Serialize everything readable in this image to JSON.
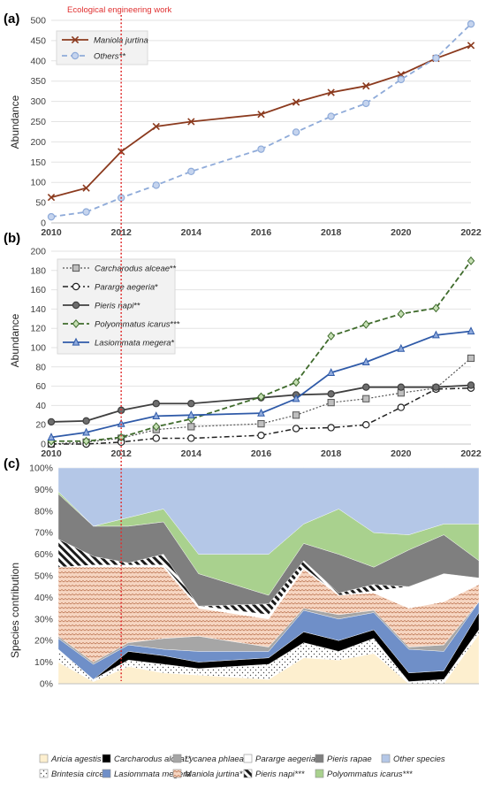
{
  "annotation": "Ecological engineering work",
  "chart_data": [
    {
      "panel": "(a)",
      "type": "line",
      "ylabel": "Abundance",
      "ylim": [
        0,
        500
      ],
      "yticks": [
        "0",
        "50",
        "100",
        "150",
        "200",
        "250",
        "300",
        "350",
        "400",
        "450",
        "500"
      ],
      "xlim": [
        2010,
        2022
      ],
      "xticks": [
        "2010",
        "2012",
        "2014",
        "2016",
        "2018",
        "2020",
        "2022"
      ],
      "grid": true,
      "legend": "top-left",
      "series": [
        {
          "name": "Maniola jurtina",
          "color": "#8b3a1e",
          "marker": "x",
          "x": [
            2010,
            2011,
            2012,
            2013,
            2014,
            2016,
            2017,
            2018,
            2019,
            2020,
            2021,
            2022
          ],
          "y": [
            63,
            86,
            176,
            238,
            250,
            268,
            298,
            322,
            338,
            366,
            406,
            438
          ]
        },
        {
          "name": "Others**",
          "color": "#8fabd9",
          "marker": "circle",
          "x": [
            2010,
            2011,
            2012,
            2013,
            2014,
            2016,
            2017,
            2018,
            2019,
            2020,
            2021,
            2022
          ],
          "y": [
            15,
            27,
            62,
            93,
            127,
            182,
            224,
            263,
            295,
            354,
            407,
            491
          ]
        }
      ]
    },
    {
      "panel": "(b)",
      "type": "line",
      "ylabel": "Abundance",
      "ylim": [
        0,
        200
      ],
      "yticks": [
        "0",
        "20",
        "40",
        "60",
        "80",
        "100",
        "120",
        "140",
        "160",
        "180",
        "200"
      ],
      "xlim": [
        2010,
        2022
      ],
      "xticks": [
        "2010",
        "2012",
        "2014",
        "2016",
        "2018",
        "2020",
        "2022"
      ],
      "grid": true,
      "legend": "top-left",
      "series": [
        {
          "name": "Carcharodus alceae",
          "stars": "**",
          "color": "#555555",
          "marker": "square",
          "x": [
            2010,
            2011,
            2012,
            2013,
            2014,
            2016,
            2017,
            2018,
            2019,
            2020,
            2021,
            2022
          ],
          "y": [
            0,
            2,
            6,
            15,
            18,
            21,
            30,
            43,
            47,
            53,
            58,
            89
          ]
        },
        {
          "name": "Pararge aegeria",
          "stars": "*",
          "color": "#222222",
          "marker": "circle-open",
          "x": [
            2010,
            2011,
            2012,
            2013,
            2014,
            2016,
            2017,
            2018,
            2019,
            2020,
            2021,
            2022
          ],
          "y": [
            0,
            0,
            2,
            6,
            6,
            9,
            16,
            17,
            20,
            38,
            57,
            58
          ]
        },
        {
          "name": "Pieris napi",
          "stars": "**",
          "color": "#404040",
          "marker": "circle",
          "x": [
            2010,
            2011,
            2012,
            2013,
            2014,
            2016,
            2017,
            2018,
            2019,
            2020,
            2021,
            2022
          ],
          "y": [
            23,
            24,
            35,
            42,
            42,
            48,
            51,
            52,
            59,
            59,
            59,
            61
          ]
        },
        {
          "name": "Polyommatus icarus",
          "stars": "***",
          "color": "#3f6b2c",
          "marker": "diamond",
          "x": [
            2010,
            2011,
            2012,
            2013,
            2014,
            2016,
            2017,
            2018,
            2019,
            2020,
            2021,
            2022
          ],
          "y": [
            3,
            3,
            7,
            18,
            26,
            49,
            64,
            112,
            124,
            135,
            141,
            190
          ]
        },
        {
          "name": "Lasiommata megera",
          "stars": "*",
          "color": "#2f5aa8",
          "marker": "triangle",
          "x": [
            2010,
            2011,
            2012,
            2013,
            2014,
            2016,
            2017,
            2018,
            2019,
            2020,
            2021,
            2022
          ],
          "y": [
            7,
            12,
            21,
            29,
            30,
            32,
            47,
            74,
            85,
            99,
            113,
            117
          ]
        }
      ]
    },
    {
      "panel": "(c)",
      "type": "area",
      "stacked": true,
      "ylabel": "Species contribution",
      "ylim": [
        0,
        100
      ],
      "yticks": [
        "0%",
        "10%",
        "20%",
        "30%",
        "40%",
        "50%",
        "60%",
        "70%",
        "80%",
        "90%",
        "100%"
      ],
      "x": [
        2010,
        2011,
        2012,
        2013,
        2014,
        2016,
        2017,
        2018,
        2019,
        2020,
        2021,
        2022
      ],
      "xticks": [],
      "legend": "bottom",
      "series": [
        {
          "name": "Aricia agestis",
          "fill": "#fdefcf",
          "values": [
            10,
            1,
            8,
            5,
            4,
            2,
            12,
            11,
            14,
            0,
            0,
            23
          ]
        },
        {
          "name": "Brintesia circe",
          "fill": "#e8e8e8",
          "values": [
            6,
            1,
            3,
            4,
            3,
            7,
            7,
            4,
            7,
            1,
            2,
            2
          ]
        },
        {
          "name": "Carcharodus alcea**",
          "fill": "#000000",
          "values": [
            0,
            0,
            4,
            4,
            3,
            3,
            5,
            5,
            4,
            4,
            4,
            8
          ]
        },
        {
          "name": "Lasiommata megera",
          "fill": "#6f8fc8",
          "values": [
            5,
            7,
            3,
            3,
            5,
            3,
            10,
            10,
            8,
            11,
            9,
            5
          ]
        },
        {
          "name": "Lycanea phlaeas",
          "fill": "#a6a6a6",
          "values": [
            1,
            1,
            1,
            5,
            7,
            2,
            1,
            2,
            1,
            1,
            3,
            0
          ]
        },
        {
          "name": "Maniola jurtina*",
          "fill": "#f6d5c1",
          "values": [
            32,
            44,
            35,
            33,
            13,
            13,
            18,
            9,
            8,
            18,
            20,
            8
          ]
        },
        {
          "name": "Pararge aegeria*",
          "fill": "#ffffff",
          "values": [
            0,
            1,
            1,
            1,
            1,
            2,
            1,
            0,
            1,
            10,
            13,
            3
          ]
        },
        {
          "name": "Pieris napi***",
          "fill": "#ffffff",
          "values": [
            13,
            4,
            1,
            5,
            0,
            5,
            3,
            1,
            3,
            0,
            0,
            0
          ]
        },
        {
          "name": "Pieris rapae",
          "fill": "#7f7f7f",
          "values": [
            21,
            14,
            17,
            15,
            15,
            4,
            8,
            18,
            8,
            17,
            18,
            8
          ]
        },
        {
          "name": "Polyommatus icarus***",
          "fill": "#a9d18e",
          "values": [
            1,
            0,
            4,
            6,
            9,
            19,
            9,
            21,
            16,
            7,
            5,
            17
          ]
        },
        {
          "name": "Other species",
          "fill": "#b4c7e7",
          "values": [
            11,
            27,
            23,
            19,
            40,
            40,
            26,
            19,
            30,
            31,
            26,
            26
          ]
        }
      ]
    }
  ]
}
